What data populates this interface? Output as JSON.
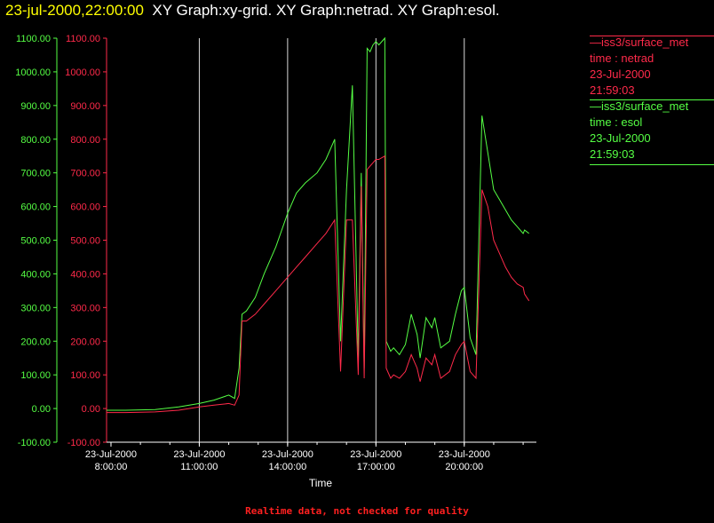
{
  "header": {
    "timestamp": "23-jul-2000,22:00:00",
    "graphs": "XY Graph:xy-grid.  XY Graph:netrad.  XY Graph:esol."
  },
  "footer": "Realtime data, not checked for quality",
  "legend": [
    {
      "source": "iss3/surface_met",
      "label": "time : netrad",
      "date": "23-Jul-2000",
      "time": "21:59:03",
      "color": "#ff2a4a"
    },
    {
      "source": "iss3/surface_met",
      "label": "time : esol",
      "date": "23-Jul-2000",
      "time": "21:59:03",
      "color": "#55ff44"
    }
  ],
  "chart_data": {
    "type": "line",
    "xlabel": "Time",
    "ylabel": "",
    "xlim": [
      7.85,
      22.45
    ],
    "ylim": [
      -100,
      1100
    ],
    "grid": "vertical lines at x ticks",
    "y_ticks": [
      "-100.00",
      "0.00",
      "100.00",
      "200.00",
      "300.00",
      "400.00",
      "500.00",
      "600.00",
      "700.00",
      "800.00",
      "900.00",
      "1000.00",
      "1100.00"
    ],
    "x_ticks": [
      {
        "x": 8,
        "date": "23-Jul-2000",
        "time": "8:00:00"
      },
      {
        "x": 11,
        "date": "23-Jul-2000",
        "time": "11:00:00"
      },
      {
        "x": 14,
        "date": "23-Jul-2000",
        "time": "14:00:00"
      },
      {
        "x": 17,
        "date": "23-Jul-2000",
        "time": "17:00:00"
      },
      {
        "x": 20,
        "date": "23-Jul-2000",
        "time": "20:00:00"
      }
    ],
    "series": [
      {
        "name": "time : esol",
        "color": "#55ff44",
        "x": [
          7.85,
          8.5,
          9.5,
          10.3,
          11.0,
          11.5,
          12.0,
          12.2,
          12.35,
          12.45,
          12.6,
          12.9,
          13.2,
          13.6,
          14.0,
          14.3,
          14.6,
          15.0,
          15.3,
          15.6,
          15.8,
          16.0,
          16.2,
          16.4,
          16.5,
          16.6,
          16.7,
          16.8,
          16.9,
          17.0,
          17.1,
          17.3,
          17.35,
          17.5,
          17.6,
          17.8,
          18.0,
          18.2,
          18.4,
          18.5,
          18.7,
          18.9,
          19.0,
          19.2,
          19.5,
          19.7,
          19.9,
          20.0,
          20.2,
          20.4,
          20.6,
          20.8,
          21.0,
          21.2,
          21.4,
          21.6,
          21.8,
          22.0,
          22.05,
          22.2
        ],
        "y": [
          -5,
          -5,
          -3,
          5,
          15,
          25,
          40,
          30,
          120,
          280,
          290,
          330,
          400,
          480,
          580,
          640,
          670,
          700,
          740,
          800,
          200,
          650,
          960,
          150,
          700,
          120,
          1070,
          1060,
          1080,
          1090,
          1080,
          1100,
          200,
          170,
          180,
          160,
          190,
          280,
          220,
          150,
          270,
          240,
          270,
          180,
          200,
          280,
          350,
          360,
          210,
          160,
          870,
          760,
          650,
          620,
          590,
          560,
          540,
          520,
          530,
          520
        ]
      },
      {
        "name": "time : netrad",
        "color": "#ff2a4a",
        "x": [
          7.85,
          8.5,
          9.5,
          10.3,
          11.0,
          11.5,
          12.0,
          12.2,
          12.35,
          12.45,
          12.6,
          12.9,
          13.2,
          13.6,
          14.0,
          14.3,
          14.6,
          15.0,
          15.3,
          15.6,
          15.8,
          16.0,
          16.2,
          16.4,
          16.5,
          16.6,
          16.7,
          16.8,
          16.9,
          17.0,
          17.1,
          17.3,
          17.35,
          17.5,
          17.6,
          17.8,
          18.0,
          18.2,
          18.4,
          18.5,
          18.7,
          18.9,
          19.0,
          19.2,
          19.5,
          19.7,
          19.9,
          20.0,
          20.2,
          20.4,
          20.6,
          20.8,
          21.0,
          21.2,
          21.4,
          21.6,
          21.8,
          22.0,
          22.05,
          22.2
        ],
        "y": [
          -12,
          -12,
          -10,
          -5,
          5,
          10,
          15,
          10,
          40,
          260,
          260,
          280,
          310,
          350,
          390,
          420,
          450,
          490,
          520,
          560,
          110,
          560,
          560,
          100,
          660,
          90,
          710,
          720,
          730,
          740,
          740,
          750,
          120,
          90,
          100,
          90,
          110,
          160,
          120,
          80,
          150,
          130,
          160,
          90,
          110,
          160,
          190,
          200,
          110,
          90,
          650,
          600,
          500,
          460,
          420,
          390,
          370,
          360,
          340,
          320
        ]
      }
    ]
  }
}
